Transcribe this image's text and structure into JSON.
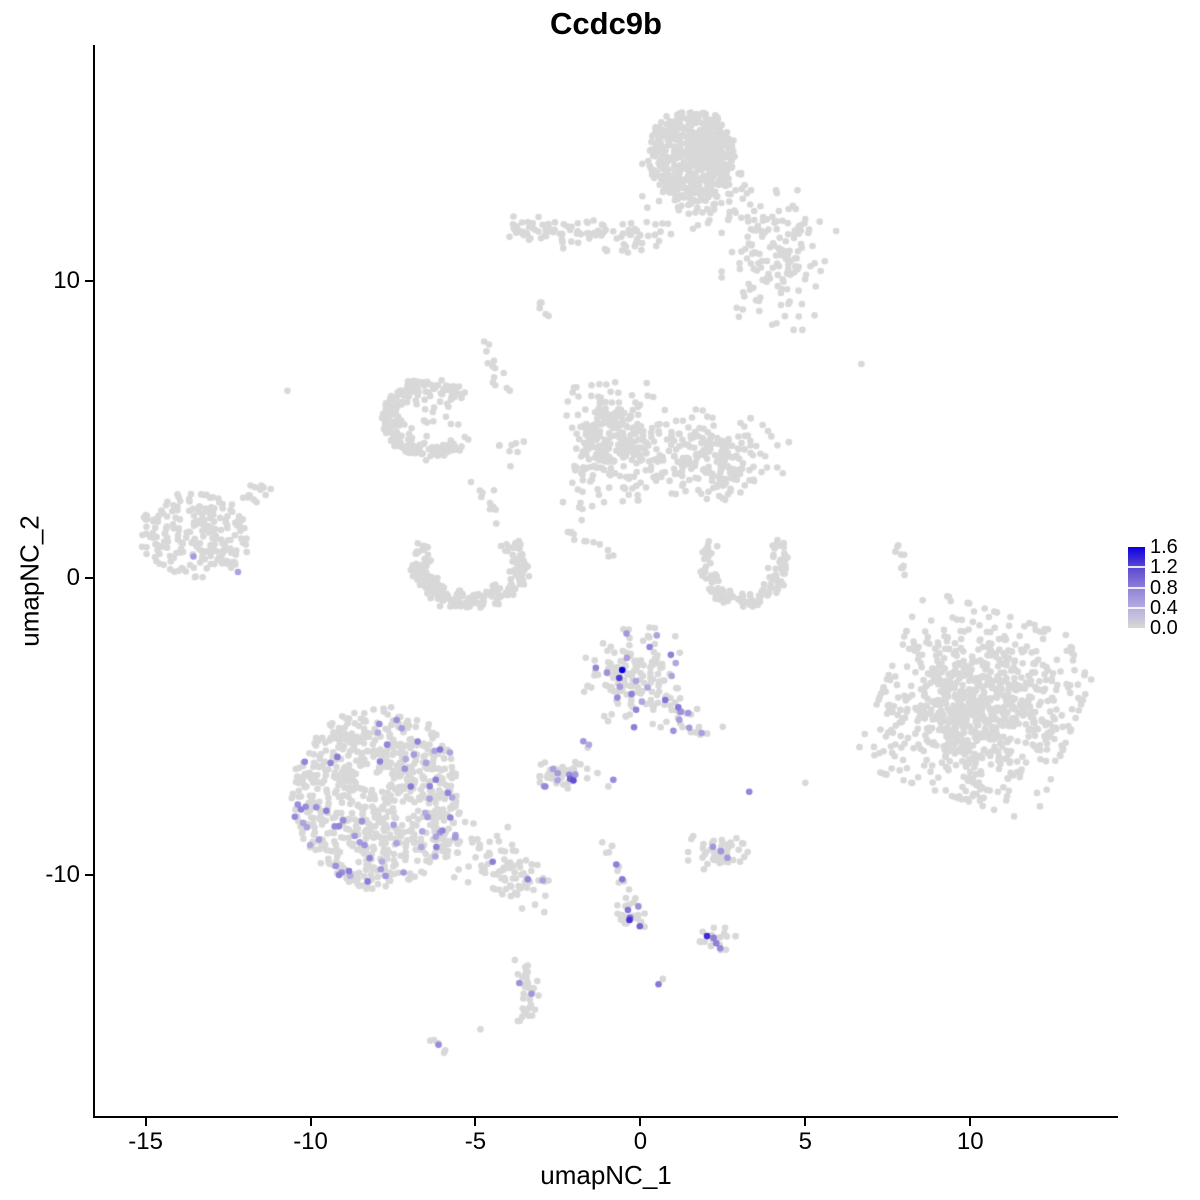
{
  "title": "Ccdc9b",
  "axes": {
    "x_label": "umapNC_1",
    "y_label": "umapNC_2",
    "x_ticks": [
      "-15",
      "-10",
      "-5",
      "0",
      "5",
      "10"
    ],
    "x_tick_values": [
      -15,
      -10,
      -5,
      0,
      5,
      10
    ],
    "y_ticks": [
      "10",
      "0",
      "-10"
    ],
    "y_tick_values": [
      10,
      0,
      -10
    ]
  },
  "legend": {
    "labels": [
      "1.6",
      "1.2",
      "0.8",
      "0.4",
      "0.0"
    ],
    "values": [
      1.6,
      1.2,
      0.8,
      0.4,
      0.0
    ],
    "max_value": 1.6
  },
  "colors": {
    "background": "#ffffff",
    "axis": "#000000",
    "point_low": "#d8d8d8",
    "point_high": "#0d00e0",
    "gradient_stops": [
      "#d8d8d8",
      "#b7addf",
      "#8f7fd9",
      "#5b47cf",
      "#0d00e0"
    ]
  },
  "chart_data": {
    "type": "scatter",
    "title": "Ccdc9b",
    "xlabel": "umapNC_1",
    "ylabel": "umapNC_2",
    "xlim": [
      -16.55,
      14.48
    ],
    "ylim": [
      -18.15,
      17.94
    ],
    "grid": false,
    "legend_position": "right",
    "point_radius_px": 3.3,
    "seed": 1337,
    "clusters": [
      {
        "name": "top-main",
        "kind": "disk",
        "n": 520,
        "cx": 1.55,
        "cy": 14.2,
        "rx": 1.3,
        "ry": 1.6
      },
      {
        "name": "top-main-fringe",
        "kind": "gauss",
        "n": 90,
        "cx": 1.85,
        "cy": 13.1,
        "rx": 1.6,
        "ry": 1.4
      },
      {
        "name": "top-right-scatter",
        "kind": "gauss",
        "n": 150,
        "cx": 4.2,
        "cy": 10.7,
        "rx": 1.55,
        "ry": 2.1
      },
      {
        "name": "top-left-arm",
        "kind": "band",
        "n": 105,
        "cx": -1.7,
        "cy": 11.55,
        "rx": 2.3,
        "ry": 0.5,
        "rot": -4
      },
      {
        "name": "top-small-streak",
        "kind": "streak",
        "n": 7,
        "x1": -3.1,
        "y1": 9.4,
        "x2": -2.8,
        "y2": 8.7,
        "w": 0.08
      },
      {
        "name": "mid-left-arc",
        "kind": "arc",
        "n": 200,
        "cx": -6.35,
        "cy": 5.35,
        "rx": 1.45,
        "ry": 1.3,
        "a1": 40,
        "a2": 310
      },
      {
        "name": "mid-left-arc-fill",
        "kind": "gauss",
        "n": 30,
        "cx": -6.6,
        "cy": 5.5,
        "rx": 1.1,
        "ry": 1.0
      },
      {
        "name": "arc-trail",
        "kind": "streak",
        "n": 10,
        "x1": -5.3,
        "y1": 4.5,
        "x2": -3.3,
        "y2": 4.3,
        "w": 0.18
      },
      {
        "name": "up-streak",
        "kind": "streak",
        "n": 13,
        "x1": -4.75,
        "y1": 7.9,
        "x2": -4.15,
        "y2": 6.3,
        "w": 0.1
      },
      {
        "name": "mid-chain",
        "kind": "streak",
        "n": 11,
        "x1": -4.9,
        "y1": 3.4,
        "x2": -4.3,
        "y2": 1.6,
        "w": 0.12
      },
      {
        "name": "cup-left",
        "kind": "arc",
        "n": 235,
        "cx": -5.15,
        "cy": 0.45,
        "rx": 1.75,
        "ry": 1.45,
        "a1": 150,
        "a2": 395
      },
      {
        "name": "mid-right-lobe-a",
        "kind": "gauss",
        "n": 270,
        "cx": -0.75,
        "cy": 4.55,
        "rx": 1.2,
        "ry": 1.8,
        "rot": 8
      },
      {
        "name": "mid-right-lobe-b",
        "kind": "gauss",
        "n": 225,
        "cx": 2.2,
        "cy": 4.1,
        "rx": 1.95,
        "ry": 1.3,
        "rot": -10
      },
      {
        "name": "mid-right-streak",
        "kind": "streak",
        "n": 13,
        "x1": -2.35,
        "y1": 1.8,
        "x2": -1.05,
        "y2": 0.75,
        "w": 0.12
      },
      {
        "name": "mid-strays",
        "kind": "gauss",
        "n": 7,
        "cx": -2.0,
        "cy": 2.5,
        "rx": 0.55,
        "ry": 0.85
      },
      {
        "name": "right-crescent",
        "kind": "arc",
        "n": 125,
        "cx": 3.15,
        "cy": 0.5,
        "rx": 1.3,
        "ry": 1.5,
        "a1": 150,
        "a2": 400
      },
      {
        "name": "far-left",
        "kind": "disk",
        "n": 215,
        "cx": -13.5,
        "cy": 1.45,
        "rx": 1.7,
        "ry": 1.45
      },
      {
        "name": "far-left-tail",
        "kind": "streak",
        "n": 16,
        "x1": -12.5,
        "y1": 2.3,
        "x2": -11.2,
        "y2": 3.1,
        "w": 0.15
      },
      {
        "name": "right-streak",
        "kind": "streak",
        "n": 9,
        "x1": 7.75,
        "y1": 1.2,
        "x2": 8.05,
        "y2": -0.2,
        "w": 0.09
      },
      {
        "name": "right-big",
        "kind": "gauss",
        "n": 880,
        "cx": 10.25,
        "cy": -4.3,
        "rx": 2.6,
        "ry": 2.8,
        "rot": -20
      },
      {
        "name": "center-mid",
        "kind": "gauss",
        "n": 150,
        "cx": -0.25,
        "cy": -3.35,
        "rx": 1.3,
        "ry": 1.5,
        "n_colored": 18,
        "lv": [
          0.45,
          0.9
        ]
      },
      {
        "name": "center-mid-tail",
        "kind": "streak",
        "n": 26,
        "x1": 0.6,
        "y1": -4.0,
        "x2": 2.0,
        "y2": -5.3,
        "w": 0.18,
        "n_colored": 5,
        "lv": [
          0.5,
          0.85
        ]
      },
      {
        "name": "small-left-of-center",
        "kind": "gauss",
        "n": 40,
        "cx": -2.42,
        "cy": -6.55,
        "rx": 0.72,
        "ry": 0.48,
        "n_colored": 7,
        "lv": [
          0.45,
          0.8
        ]
      },
      {
        "name": "small-right",
        "kind": "gauss",
        "n": 50,
        "cx": 2.3,
        "cy": -9.25,
        "rx": 0.85,
        "ry": 0.5
      },
      {
        "name": "chain-down",
        "kind": "streak",
        "n": 11,
        "x1": -1.0,
        "y1": -8.8,
        "x2": -0.38,
        "y2": -10.9,
        "w": 0.1
      },
      {
        "name": "chain-cluster",
        "kind": "gauss",
        "n": 26,
        "cx": -0.32,
        "cy": -11.35,
        "rx": 0.4,
        "ry": 0.5,
        "n_colored": 4,
        "lv": [
          0.6,
          1.0
        ]
      },
      {
        "name": "bottom-small",
        "kind": "gauss",
        "n": 22,
        "cx": 2.3,
        "cy": -12.25,
        "rx": 0.55,
        "ry": 0.42
      },
      {
        "name": "sliver-top",
        "kind": "streak",
        "n": 18,
        "x1": -3.6,
        "y1": -13.0,
        "x2": -3.28,
        "y2": -13.95,
        "w": 0.14
      },
      {
        "name": "sliver-bottom",
        "kind": "streak",
        "n": 17,
        "x1": -3.28,
        "y1": -13.95,
        "x2": -3.5,
        "y2": -14.9,
        "w": 0.13
      },
      {
        "name": "dash",
        "kind": "streak",
        "n": 6,
        "x1": -6.3,
        "y1": -15.5,
        "x2": -5.9,
        "y2": -15.95,
        "w": 0.07
      },
      {
        "name": "bottom-left-big",
        "kind": "disk",
        "n": 830,
        "cx": -8.0,
        "cy": -7.4,
        "rx": 2.6,
        "ry": 3.05,
        "n_colored": 62,
        "lv": [
          0.4,
          0.85
        ]
      },
      {
        "name": "bottom-left-tail",
        "kind": "streak",
        "n": 105,
        "x1": -5.8,
        "y1": -8.6,
        "x2": -3.3,
        "y2": -10.45,
        "w": 0.42,
        "n_colored": 6,
        "lv": [
          0.45,
          0.8
        ]
      }
    ],
    "singletons": [
      {
        "x": 6.7,
        "y": 7.2,
        "level": 0
      },
      {
        "x": -10.7,
        "y": 6.3,
        "level": 0
      },
      {
        "x": 5.0,
        "y": -6.9,
        "level": 0
      },
      {
        "x": -4.85,
        "y": -15.2,
        "level": 0
      },
      {
        "x": 0.68,
        "y": -13.5,
        "level": 0
      },
      {
        "x": -1.3,
        "y": -6.57,
        "level": 0
      },
      {
        "x": -0.97,
        "y": -7.02,
        "level": 0
      },
      {
        "x": -1.6,
        "y": -5.72,
        "level": 0
      },
      {
        "x": -13.55,
        "y": 0.72,
        "level": 0.55
      },
      {
        "x": -12.2,
        "y": 0.2,
        "level": 0.5
      },
      {
        "x": -1.73,
        "y": -5.5,
        "level": 0.6
      },
      {
        "x": -1.56,
        "y": -5.62,
        "level": 0.45
      },
      {
        "x": 1.0,
        "y": -5.15,
        "level": 0.65
      },
      {
        "x": -0.82,
        "y": -6.8,
        "level": 0.7
      },
      {
        "x": 3.3,
        "y": -7.2,
        "level": 0.75
      },
      {
        "x": 0.55,
        "y": -13.68,
        "level": 0.85
      },
      {
        "x": -6.12,
        "y": -15.72,
        "level": 0.7
      },
      {
        "x": -3.67,
        "y": -13.64,
        "level": 0.65
      },
      {
        "x": -3.3,
        "y": -14.0,
        "level": 0.6
      },
      {
        "x": -0.73,
        "y": -9.65,
        "level": 0.8
      },
      {
        "x": -0.55,
        "y": -10.15,
        "level": 0.85
      },
      {
        "x": -0.64,
        "y": -3.37,
        "level": 1.25
      },
      {
        "x": -0.55,
        "y": -3.1,
        "level": 1.6
      },
      {
        "x": -2.03,
        "y": -6.82,
        "level": 1.15
      },
      {
        "x": -2.13,
        "y": -6.76,
        "level": 1.0
      },
      {
        "x": 2.02,
        "y": -12.06,
        "level": 1.35
      },
      {
        "x": 2.22,
        "y": -12.12,
        "level": 0.8
      },
      {
        "x": 2.3,
        "y": -12.3,
        "level": 0.8
      },
      {
        "x": 2.42,
        "y": -12.47,
        "level": 0.7
      },
      {
        "x": -0.33,
        "y": -11.52,
        "level": 1.3
      },
      {
        "x": 2.2,
        "y": -9.05,
        "level": 0.6
      },
      {
        "x": 2.44,
        "y": -9.2,
        "level": 0.6
      },
      {
        "x": 2.64,
        "y": -9.42,
        "level": 0.6
      },
      {
        "x": 1.45,
        "y": -4.55,
        "level": 0.6
      },
      {
        "x": 1.18,
        "y": -4.78,
        "level": 0.55
      }
    ]
  }
}
